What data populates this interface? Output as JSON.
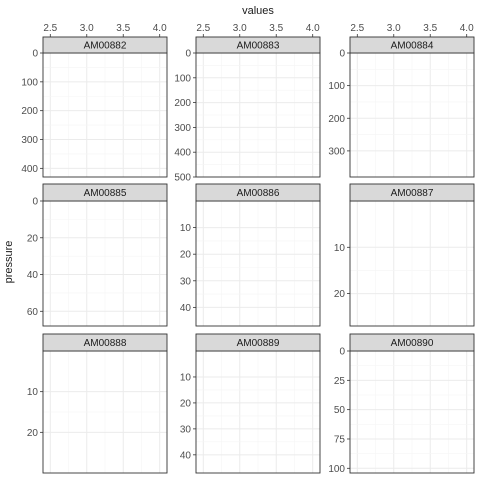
{
  "chart_data": {
    "type": "scatter",
    "facet_layout": "3x3",
    "xlabel": "values",
    "ylabel": "pressure",
    "y_reversed": true,
    "grid": true,
    "colors": {
      "strip_fill": "#d9d9d9",
      "panel_border": "#333333",
      "grid_major": "#ebebeb",
      "grid_minor": "#f5f5f5",
      "tick_text": "#4d4d4d"
    },
    "x_ticks": [
      "2.5",
      "3.0",
      "3.5",
      "4.0"
    ],
    "xlim": [
      2.4,
      4.1
    ],
    "panels": [
      {
        "name": "AM00882",
        "ylim": [
          0,
          430
        ],
        "y_ticks": [
          "0",
          "100",
          "200",
          "300",
          "400"
        ],
        "y_tick_values": [
          0,
          100,
          200,
          300,
          400
        ],
        "points": []
      },
      {
        "name": "AM00883",
        "ylim": [
          0,
          500
        ],
        "y_ticks": [
          "0",
          "100",
          "200",
          "300",
          "400",
          "500"
        ],
        "y_tick_values": [
          0,
          100,
          200,
          300,
          400,
          500
        ],
        "points": []
      },
      {
        "name": "AM00884",
        "ylim": [
          0,
          380
        ],
        "y_ticks": [
          "0",
          "100",
          "200",
          "300"
        ],
        "y_tick_values": [
          0,
          100,
          200,
          300
        ],
        "points": []
      },
      {
        "name": "AM00885",
        "ylim": [
          0,
          68
        ],
        "y_ticks": [
          "0",
          "20",
          "40",
          "60"
        ],
        "y_tick_values": [
          0,
          20,
          40,
          60
        ],
        "points": []
      },
      {
        "name": "AM00886",
        "ylim": [
          0,
          47
        ],
        "y_ticks": [
          "10",
          "20",
          "30",
          "40"
        ],
        "y_tick_values": [
          10,
          20,
          30,
          40
        ],
        "points": []
      },
      {
        "name": "AM00887",
        "ylim": [
          0,
          27
        ],
        "y_ticks": [
          "10",
          "20"
        ],
        "y_tick_values": [
          10,
          20
        ],
        "points": []
      },
      {
        "name": "AM00888",
        "ylim": [
          0,
          30
        ],
        "y_ticks": [
          "10",
          "20"
        ],
        "y_tick_values": [
          10,
          20
        ],
        "points": []
      },
      {
        "name": "AM00889",
        "ylim": [
          0,
          47
        ],
        "y_ticks": [
          "10",
          "20",
          "30",
          "40"
        ],
        "y_tick_values": [
          10,
          20,
          30,
          40
        ],
        "points": []
      },
      {
        "name": "AM00890",
        "ylim": [
          0,
          104
        ],
        "y_ticks": [
          "0",
          "25",
          "50",
          "75",
          "100"
        ],
        "y_tick_values": [
          0,
          25,
          50,
          75,
          100
        ],
        "points": []
      }
    ]
  }
}
